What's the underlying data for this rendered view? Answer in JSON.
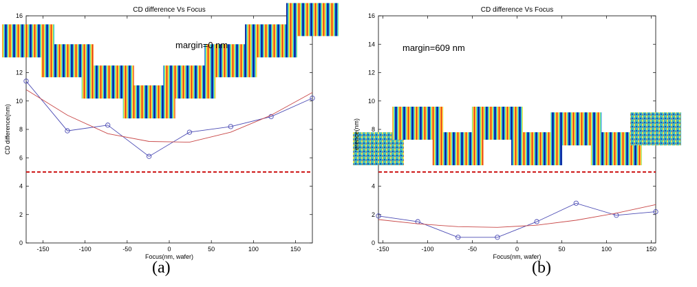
{
  "figure": {
    "captions": [
      "(a)",
      "(b)"
    ]
  },
  "chart_data": [
    {
      "type": "line",
      "title": "CD difference Vs Focus",
      "xlabel": "Focus(nm, wafer)",
      "ylabel": "CD difference(nm)",
      "xlim": [
        -170,
        170
      ],
      "ylim": [
        0,
        16
      ],
      "xticks": [
        -150,
        -100,
        -50,
        0,
        50,
        100,
        150
      ],
      "yticks": [
        0,
        2,
        4,
        6,
        8,
        10,
        12,
        14,
        16
      ],
      "annotation": "margin=0 nm",
      "threshold": 5,
      "series": [
        {
          "style": "measured",
          "color": "#4b4bb4",
          "x": [
            -170,
            -121,
            -73,
            -24,
            24,
            73,
            121,
            170
          ],
          "y": [
            11.4,
            7.9,
            8.3,
            6.1,
            7.8,
            8.2,
            8.9,
            10.2
          ]
        },
        {
          "style": "fit",
          "color": "#c84646",
          "x": [
            -170,
            -121,
            -73,
            -24,
            24,
            73,
            121,
            170
          ],
          "y": [
            10.8,
            9.0,
            7.7,
            7.15,
            7.1,
            7.8,
            9.0,
            10.6
          ]
        }
      ],
      "insets": [
        {
          "x": -170,
          "y": 15.4
        },
        {
          "x": -121,
          "y": 14.0
        },
        {
          "x": -73,
          "y": 12.5
        },
        {
          "x": -24,
          "y": 11.1
        },
        {
          "x": 24,
          "y": 12.5
        },
        {
          "x": 73,
          "y": 14.0
        },
        {
          "x": 121,
          "y": 15.4
        },
        {
          "x": 170,
          "y": 16.9
        }
      ]
    },
    {
      "type": "line",
      "title": "CD difference Vs Focus",
      "xlabel": "Focus(nm, wafer)",
      "ylabel": "CD difference(nm)",
      "ylabel_visible": "erence(nm)",
      "xlim": [
        -155,
        155
      ],
      "ylim": [
        0,
        16
      ],
      "xticks": [
        -150,
        -100,
        -50,
        0,
        50,
        100,
        150
      ],
      "yticks": [
        0,
        2,
        4,
        6,
        8,
        10,
        12,
        14,
        16
      ],
      "annotation": "margin=609 nm",
      "threshold": 5,
      "series": [
        {
          "style": "measured",
          "color": "#4b4bb4",
          "x": [
            -155,
            -111,
            -66,
            -22,
            22,
            66,
            111,
            155
          ],
          "y": [
            1.9,
            1.5,
            0.4,
            0.4,
            1.5,
            2.8,
            1.95,
            2.2
          ]
        },
        {
          "style": "fit",
          "color": "#c84646",
          "x": [
            -155,
            -111,
            -66,
            -22,
            22,
            66,
            111,
            155
          ],
          "y": [
            1.65,
            1.35,
            1.15,
            1.1,
            1.25,
            1.6,
            2.1,
            2.7
          ]
        }
      ],
      "insets": [
        {
          "x": -155,
          "y": 7.8
        },
        {
          "x": -111,
          "y": 9.6
        },
        {
          "x": -66,
          "y": 7.8
        },
        {
          "x": -22,
          "y": 9.6
        },
        {
          "x": 22,
          "y": 7.8
        },
        {
          "x": 66,
          "y": 9.2
        },
        {
          "x": 111,
          "y": 7.8
        },
        {
          "x": 155,
          "y": 9.2
        }
      ]
    }
  ]
}
